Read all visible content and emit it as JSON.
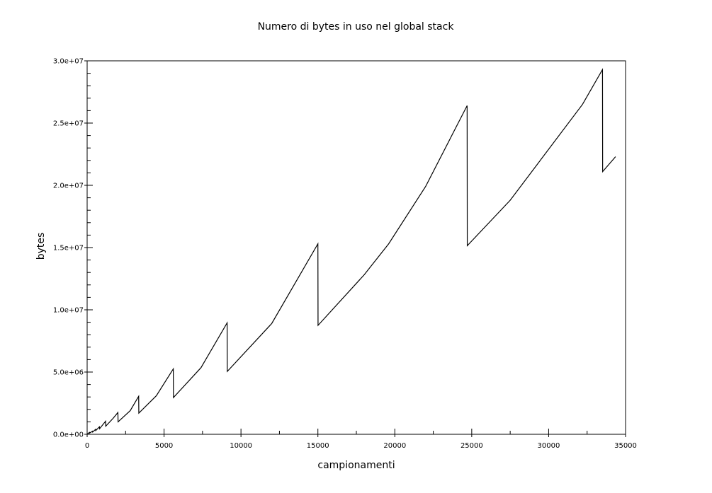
{
  "chart_data": {
    "type": "line",
    "title": "Numero di bytes in uso nel global stack",
    "xlabel": "campionamenti",
    "ylabel": "bytes",
    "xlim": [
      0,
      35000
    ],
    "ylim": [
      0,
      30000000
    ],
    "grid": false,
    "x_ticks": [
      {
        "value": 0,
        "label": "0"
      },
      {
        "value": 5000,
        "label": "5000"
      },
      {
        "value": 10000,
        "label": "10000"
      },
      {
        "value": 15000,
        "label": "15000"
      },
      {
        "value": 20000,
        "label": "20000"
      },
      {
        "value": 25000,
        "label": "25000"
      },
      {
        "value": 30000,
        "label": "30000"
      },
      {
        "value": 35000,
        "label": "35000"
      }
    ],
    "y_ticks": [
      {
        "value": 0,
        "label": "0.0e+00"
      },
      {
        "value": 5000000,
        "label": "5.0e+06"
      },
      {
        "value": 10000000,
        "label": "1.0e+07"
      },
      {
        "value": 15000000,
        "label": "1.5e+07"
      },
      {
        "value": 20000000,
        "label": "2.0e+07"
      },
      {
        "value": 25000000,
        "label": "2.5e+07"
      },
      {
        "value": 30000000,
        "label": "3.0e+07"
      }
    ],
    "series": [
      {
        "color": "#000000",
        "points": [
          [
            0,
            0
          ],
          [
            150,
            150000
          ],
          [
            160,
            100000
          ],
          [
            350,
            250000
          ],
          [
            360,
            180000
          ],
          [
            550,
            400000
          ],
          [
            560,
            300000
          ],
          [
            800,
            600000
          ],
          [
            810,
            450000
          ],
          [
            1200,
            1050000
          ],
          [
            1210,
            650000
          ],
          [
            1700,
            1300000
          ],
          [
            2000,
            1750000
          ],
          [
            2010,
            1000000
          ],
          [
            2800,
            1900000
          ],
          [
            3350,
            3050000
          ],
          [
            3360,
            1700000
          ],
          [
            4500,
            3100000
          ],
          [
            5600,
            5250000
          ],
          [
            5610,
            2950000
          ],
          [
            7400,
            5350000
          ],
          [
            9100,
            8950000
          ],
          [
            9110,
            5050000
          ],
          [
            12000,
            8900000
          ],
          [
            15000,
            15300000
          ],
          [
            15010,
            8750000
          ],
          [
            18000,
            12800000
          ],
          [
            19600,
            15300000
          ],
          [
            22000,
            19900000
          ],
          [
            24700,
            26400000
          ],
          [
            24710,
            15150000
          ],
          [
            27500,
            18800000
          ],
          [
            32200,
            26500000
          ],
          [
            33500,
            29300000
          ],
          [
            33510,
            21100000
          ],
          [
            34350,
            22300000
          ]
        ]
      }
    ]
  }
}
